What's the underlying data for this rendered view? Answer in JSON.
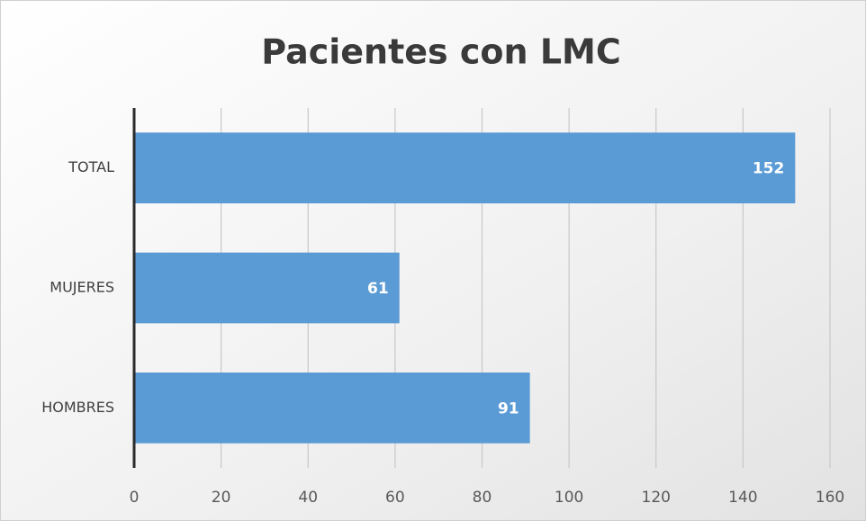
{
  "chart_data": {
    "type": "bar",
    "horizontal": true,
    "title": "Pacientes con LMC",
    "categories": [
      "TOTAL",
      "MUJERES",
      "HOMBRES"
    ],
    "values": [
      152,
      61,
      91
    ],
    "color": "#5b9bd5",
    "xlim": [
      0,
      160
    ],
    "xticks": [
      0,
      20,
      40,
      60,
      80,
      100,
      120,
      140,
      160
    ],
    "grid": true
  }
}
